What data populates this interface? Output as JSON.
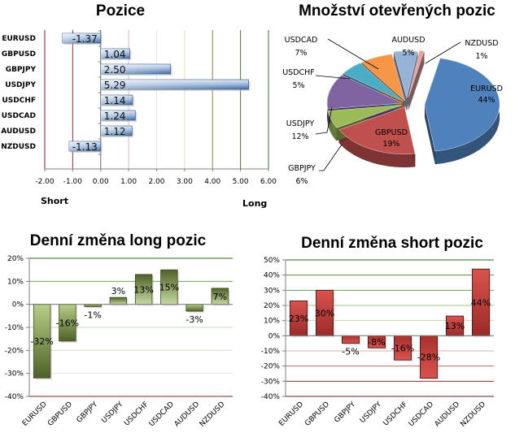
{
  "chart_data": [
    {
      "id": "positions",
      "type": "bar",
      "orientation": "horizontal",
      "title": "Pozice",
      "categories": [
        "EURUSD",
        "GBPUSD",
        "GBPJPY",
        "USDJPY",
        "USDCHF",
        "USDCAD",
        "AUDUSD",
        "NZDUSD"
      ],
      "values": [
        -1.37,
        1.04,
        2.5,
        5.29,
        1.14,
        1.24,
        1.12,
        -1.13
      ],
      "value_labels": [
        "-1.37",
        "1.04",
        "2.50",
        "5.29",
        "1.14",
        "1.24",
        "1.12",
        "-1.13"
      ],
      "xlim": [
        -2,
        6
      ],
      "xticks": [
        "-2.00",
        "-1.00",
        "0.00",
        "1.00",
        "2.00",
        "3.00",
        "4.00",
        "5.00",
        "6.00"
      ],
      "xlabel_left": "Short",
      "xlabel_right": "Long",
      "bar_color": "#4f81bd",
      "grid": true
    },
    {
      "id": "open-positions",
      "type": "pie",
      "title": "Množství otevřených pozic",
      "slices": [
        {
          "label": "EURUSD",
          "value": 44,
          "pct": "44%",
          "color": "#4f81bd"
        },
        {
          "label": "GBPUSD",
          "value": 19,
          "pct": "19%",
          "color": "#c0504d"
        },
        {
          "label": "GBPJPY",
          "value": 6,
          "pct": "6%",
          "color": "#9bbb59"
        },
        {
          "label": "USDJPY",
          "value": 12,
          "pct": "12%",
          "color": "#8064a2"
        },
        {
          "label": "USDCHF",
          "value": 5,
          "pct": "5%",
          "color": "#4bacc6"
        },
        {
          "label": "USDCAD",
          "value": 7,
          "pct": "7%",
          "color": "#f79646"
        },
        {
          "label": "AUDUSD",
          "value": 5,
          "pct": "5%",
          "color": "#95b3d7"
        },
        {
          "label": "NZDUSD",
          "value": 1,
          "pct": "1%",
          "color": "#e6a1a0"
        }
      ]
    },
    {
      "id": "daily-long",
      "type": "bar",
      "title": "Denní změna long pozic",
      "categories": [
        "EURUSD",
        "GBPUSD",
        "GBPJPY",
        "USDJPY",
        "USDCHF",
        "USDCAD",
        "AUDUSD",
        "NZDUSD"
      ],
      "values": [
        -32,
        -16,
        -1,
        3,
        13,
        15,
        -3,
        7
      ],
      "value_labels": [
        "-32%",
        "-16%",
        "-1%",
        "3%",
        "13%",
        "15%",
        "-3%",
        "7%"
      ],
      "ylim": [
        -40,
        20
      ],
      "yticks": [
        "20%",
        "10%",
        "0%",
        "-10%",
        "-20%",
        "-30%",
        "-40%"
      ],
      "bar_color": "#77933c",
      "grid": true
    },
    {
      "id": "daily-short",
      "type": "bar",
      "title": "Denní změna short pozic",
      "categories": [
        "EURUSD",
        "GBPUSD",
        "GBPJPY",
        "USDJPY",
        "USDCHF",
        "USDCAD",
        "AUDUSD",
        "NZDUSD"
      ],
      "values": [
        23,
        30,
        -5,
        -8,
        -16,
        -28,
        13,
        44
      ],
      "value_labels": [
        "23%",
        "30%",
        "-5%",
        "-8%",
        "-16%",
        "-28%",
        "13%",
        "44%"
      ],
      "ylim": [
        -40,
        50
      ],
      "yticks": [
        "50%",
        "40%",
        "30%",
        "20%",
        "10%",
        "0%",
        "-10%",
        "-20%",
        "-30%",
        "-40%"
      ],
      "bar_color": "#c0504d",
      "grid": true
    }
  ]
}
